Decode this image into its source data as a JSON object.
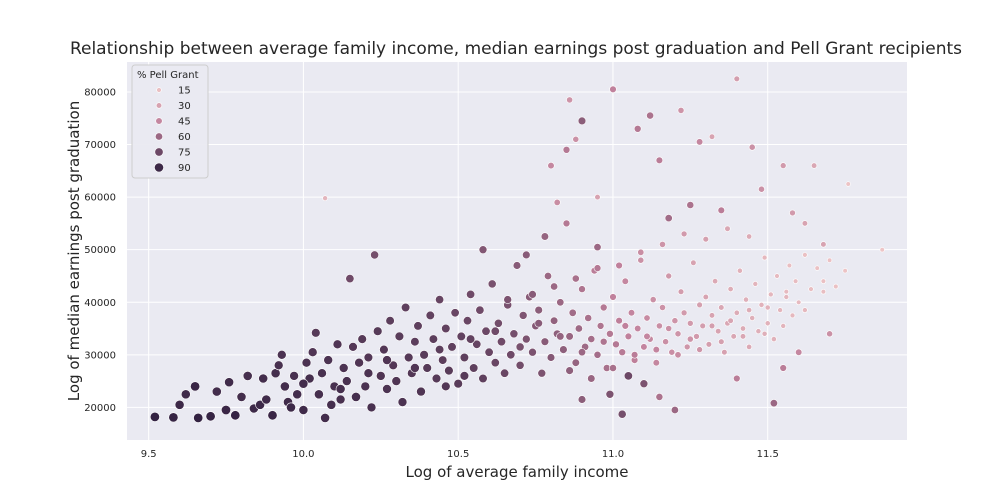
{
  "chart_data": {
    "type": "scatter",
    "title": "Relationship between average family income, median earnings post graduation and Pell Grant recipients",
    "xlabel": "Log of average family income",
    "ylabel": "Log of median earnings post graduation",
    "xlim": [
      9.43,
      11.95
    ],
    "ylim": [
      13800,
      85700
    ],
    "x_ticks": [
      "9.5",
      "10.0",
      "10.5",
      "11.0",
      "11.5"
    ],
    "y_ticks": [
      "20000",
      "30000",
      "40000",
      "50000",
      "60000",
      "70000",
      "80000"
    ],
    "grid": true,
    "background": "#eaeaf2",
    "legend": {
      "title": "% Pell Grant",
      "placement": "top-left",
      "entries": [
        "15",
        "30",
        "45",
        "60",
        "75",
        "90"
      ]
    },
    "hue_range": [
      10,
      95
    ],
    "colors": {
      "low": "#f0c9c9",
      "mid": "#c0819c",
      "high": "#2d1e3e"
    },
    "points": [
      [
        9.52,
        18200,
        93
      ],
      [
        9.58,
        18100,
        92
      ],
      [
        9.6,
        20500,
        90
      ],
      [
        9.62,
        22500,
        89
      ],
      [
        9.65,
        24000,
        91
      ],
      [
        9.66,
        18000,
        93
      ],
      [
        9.7,
        18300,
        92
      ],
      [
        9.72,
        23000,
        88
      ],
      [
        9.75,
        19500,
        91
      ],
      [
        9.76,
        24800,
        89
      ],
      [
        9.78,
        18500,
        92
      ],
      [
        9.8,
        22000,
        88
      ],
      [
        9.82,
        26000,
        87
      ],
      [
        9.84,
        19800,
        90
      ],
      [
        9.86,
        20500,
        90
      ],
      [
        9.87,
        25500,
        88
      ],
      [
        9.88,
        21500,
        89
      ],
      [
        9.9,
        18500,
        91
      ],
      [
        9.91,
        26500,
        87
      ],
      [
        9.92,
        28000,
        86
      ],
      [
        9.93,
        30000,
        85
      ],
      [
        9.94,
        24000,
        88
      ],
      [
        9.95,
        21000,
        89
      ],
      [
        9.97,
        26000,
        86
      ],
      [
        9.98,
        22500,
        88
      ],
      [
        10.0,
        19500,
        89
      ],
      [
        10.01,
        28500,
        85
      ],
      [
        10.02,
        25500,
        87
      ],
      [
        10.03,
        30500,
        84
      ],
      [
        10.04,
        34200,
        82
      ],
      [
        10.05,
        22500,
        87
      ],
      [
        10.06,
        26500,
        86
      ],
      [
        10.07,
        18000,
        88
      ],
      [
        10.08,
        29000,
        85
      ],
      [
        10.09,
        20500,
        87
      ],
      [
        10.1,
        24000,
        86
      ],
      [
        10.11,
        32000,
        84
      ],
      [
        10.12,
        21500,
        86
      ],
      [
        10.13,
        27500,
        85
      ],
      [
        10.15,
        44500,
        74
      ],
      [
        10.14,
        25000,
        86
      ],
      [
        10.16,
        31500,
        83
      ],
      [
        10.17,
        22000,
        87
      ],
      [
        10.18,
        28500,
        84
      ],
      [
        10.19,
        33000,
        82
      ],
      [
        10.2,
        24000,
        85
      ],
      [
        10.21,
        29500,
        83
      ],
      [
        10.22,
        20000,
        86
      ],
      [
        10.23,
        49000,
        72
      ],
      [
        10.24,
        34500,
        82
      ],
      [
        10.25,
        26000,
        84
      ],
      [
        10.26,
        31000,
        83
      ],
      [
        10.27,
        23500,
        85
      ],
      [
        10.28,
        36500,
        80
      ],
      [
        10.29,
        28000,
        83
      ],
      [
        10.3,
        25000,
        84
      ],
      [
        10.31,
        33500,
        81
      ],
      [
        10.32,
        21000,
        85
      ],
      [
        10.33,
        39000,
        79
      ],
      [
        10.34,
        29500,
        82
      ],
      [
        10.35,
        26500,
        83
      ],
      [
        10.36,
        32500,
        80
      ],
      [
        10.37,
        35500,
        79
      ],
      [
        10.38,
        23000,
        84
      ],
      [
        10.39,
        30000,
        81
      ],
      [
        10.4,
        27500,
        82
      ],
      [
        10.41,
        37500,
        78
      ],
      [
        10.42,
        33000,
        80
      ],
      [
        10.43,
        25500,
        82
      ],
      [
        10.44,
        40500,
        77
      ],
      [
        10.45,
        29000,
        80
      ],
      [
        10.46,
        35000,
        78
      ],
      [
        10.47,
        27000,
        81
      ],
      [
        10.48,
        31500,
        79
      ],
      [
        10.49,
        38000,
        76
      ],
      [
        10.5,
        24500,
        81
      ],
      [
        10.51,
        33500,
        78
      ],
      [
        10.52,
        29500,
        79
      ],
      [
        10.53,
        36500,
        76
      ],
      [
        10.54,
        41500,
        74
      ],
      [
        10.55,
        27500,
        79
      ],
      [
        10.56,
        32000,
        77
      ],
      [
        10.57,
        38500,
        74
      ],
      [
        10.58,
        25500,
        79
      ],
      [
        10.59,
        34500,
        75
      ],
      [
        10.6,
        30500,
        76
      ],
      [
        10.61,
        43500,
        71
      ],
      [
        10.62,
        28500,
        76
      ],
      [
        10.63,
        36000,
        73
      ],
      [
        10.64,
        32500,
        74
      ],
      [
        10.65,
        26500,
        76
      ],
      [
        10.66,
        39500,
        71
      ],
      [
        10.67,
        30000,
        74
      ],
      [
        10.68,
        34000,
        72
      ],
      [
        10.69,
        47000,
        66
      ],
      [
        10.7,
        28000,
        73
      ],
      [
        10.71,
        37500,
        69
      ],
      [
        10.72,
        33000,
        70
      ],
      [
        10.73,
        41000,
        66
      ],
      [
        10.74,
        30500,
        70
      ],
      [
        10.75,
        35500,
        67
      ],
      [
        10.76,
        38500,
        65
      ],
      [
        10.77,
        26500,
        70
      ],
      [
        10.78,
        32500,
        66
      ],
      [
        10.79,
        45000,
        60
      ],
      [
        10.8,
        29500,
        67
      ],
      [
        10.81,
        36500,
        63
      ],
      [
        10.82,
        34000,
        64
      ],
      [
        10.83,
        40000,
        60
      ],
      [
        10.84,
        31000,
        64
      ],
      [
        10.85,
        55000,
        52
      ],
      [
        10.86,
        33500,
        61
      ],
      [
        10.87,
        38000,
        58
      ],
      [
        10.88,
        28500,
        62
      ],
      [
        10.89,
        35000,
        59
      ],
      [
        10.9,
        42500,
        54
      ],
      [
        10.91,
        31500,
        59
      ],
      [
        10.92,
        37000,
        56
      ],
      [
        10.93,
        33000,
        57
      ],
      [
        10.94,
        46000,
        50
      ],
      [
        10.95,
        30000,
        57
      ],
      [
        10.96,
        35500,
        54
      ],
      [
        10.97,
        39000,
        52
      ],
      [
        10.98,
        27500,
        56
      ],
      [
        10.99,
        34000,
        52
      ],
      [
        11.0,
        41000,
        48
      ],
      [
        11.01,
        32000,
        52
      ],
      [
        11.02,
        36500,
        49
      ],
      [
        11.03,
        30500,
        51
      ],
      [
        11.04,
        44000,
        45
      ],
      [
        11.05,
        33500,
        48
      ],
      [
        11.06,
        38000,
        46
      ],
      [
        11.07,
        29000,
        49
      ],
      [
        11.08,
        35000,
        46
      ],
      [
        11.09,
        48000,
        40
      ],
      [
        11.1,
        31500,
        46
      ],
      [
        11.11,
        37000,
        43
      ],
      [
        11.12,
        33000,
        44
      ],
      [
        11.13,
        40500,
        40
      ],
      [
        11.14,
        28500,
        45
      ],
      [
        11.15,
        35500,
        41
      ],
      [
        11.16,
        39000,
        39
      ],
      [
        11.17,
        32500,
        41
      ],
      [
        11.18,
        45000,
        36
      ],
      [
        11.19,
        30500,
        41
      ],
      [
        11.2,
        36500,
        38
      ],
      [
        11.21,
        34000,
        38
      ],
      [
        11.22,
        42000,
        34
      ],
      [
        11.23,
        38000,
        35
      ],
      [
        11.24,
        31500,
        37
      ],
      [
        11.25,
        36000,
        35
      ],
      [
        11.26,
        47500,
        30
      ],
      [
        11.27,
        33500,
        35
      ],
      [
        11.28,
        39500,
        32
      ],
      [
        11.29,
        35500,
        33
      ],
      [
        11.3,
        41000,
        30
      ],
      [
        11.31,
        32000,
        33
      ],
      [
        11.32,
        37500,
        30
      ],
      [
        11.33,
        44000,
        27
      ],
      [
        11.34,
        34500,
        30
      ],
      [
        11.35,
        39000,
        28
      ],
      [
        11.36,
        30500,
        31
      ],
      [
        11.37,
        36000,
        28
      ],
      [
        11.38,
        42500,
        25
      ],
      [
        11.39,
        33500,
        28
      ],
      [
        11.4,
        38000,
        26
      ],
      [
        11.41,
        46000,
        23
      ],
      [
        11.42,
        35000,
        26
      ],
      [
        11.43,
        40500,
        24
      ],
      [
        11.44,
        31500,
        27
      ],
      [
        11.45,
        37000,
        24
      ],
      [
        11.46,
        43500,
        21
      ],
      [
        11.47,
        34500,
        24
      ],
      [
        11.48,
        39500,
        22
      ],
      [
        11.49,
        48500,
        19
      ],
      [
        11.5,
        36000,
        22
      ],
      [
        11.51,
        41500,
        20
      ],
      [
        11.52,
        33000,
        23
      ],
      [
        11.53,
        45000,
        18
      ],
      [
        11.54,
        38500,
        20
      ],
      [
        11.55,
        35500,
        21
      ],
      [
        11.56,
        42000,
        18
      ],
      [
        11.57,
        47000,
        16
      ],
      [
        11.58,
        37500,
        19
      ],
      [
        11.59,
        44000,
        17
      ],
      [
        11.6,
        40000,
        18
      ],
      [
        11.62,
        49000,
        15
      ],
      [
        11.64,
        42500,
        16
      ],
      [
        11.66,
        46500,
        14
      ],
      [
        11.68,
        44000,
        15
      ],
      [
        11.7,
        48000,
        14
      ],
      [
        11.72,
        43000,
        15
      ],
      [
        11.75,
        46000,
        13
      ],
      [
        11.87,
        50000,
        12
      ],
      [
        11.76,
        62500,
        13
      ],
      [
        11.65,
        66000,
        28
      ],
      [
        11.55,
        66000,
        35
      ],
      [
        11.45,
        69500,
        40
      ],
      [
        11.4,
        82500,
        33
      ],
      [
        11.32,
        71500,
        30
      ],
      [
        11.28,
        70500,
        45
      ],
      [
        11.22,
        76500,
        38
      ],
      [
        11.15,
        67000,
        50
      ],
      [
        11.12,
        75500,
        55
      ],
      [
        11.08,
        73000,
        52
      ],
      [
        11.0,
        80500,
        48
      ],
      [
        10.95,
        60000,
        30
      ],
      [
        10.9,
        74500,
        65
      ],
      [
        10.88,
        71000,
        40
      ],
      [
        10.86,
        78500,
        38
      ],
      [
        10.85,
        69000,
        52
      ],
      [
        10.8,
        66000,
        45
      ],
      [
        10.82,
        59000,
        42
      ],
      [
        10.07,
        59800,
        20
      ],
      [
        11.05,
        26000,
        75
      ],
      [
        10.99,
        22500,
        70
      ],
      [
        11.1,
        24500,
        70
      ],
      [
        11.2,
        19500,
        60
      ],
      [
        11.03,
        18700,
        72
      ],
      [
        11.52,
        20800,
        60
      ],
      [
        10.9,
        21500,
        65
      ],
      [
        11.15,
        22000,
        55
      ],
      [
        11.4,
        25500,
        50
      ],
      [
        11.55,
        27500,
        50
      ],
      [
        11.6,
        30500,
        45
      ],
      [
        11.7,
        34000,
        40
      ],
      [
        10.95,
        50500,
        60
      ],
      [
        11.18,
        56000,
        58
      ],
      [
        11.25,
        58500,
        55
      ],
      [
        11.35,
        57500,
        50
      ],
      [
        11.48,
        61500,
        40
      ],
      [
        11.58,
        57000,
        35
      ],
      [
        11.62,
        55000,
        30
      ],
      [
        11.68,
        51000,
        30
      ],
      [
        10.78,
        52500,
        62
      ],
      [
        10.72,
        49000,
        66
      ],
      [
        10.58,
        50000,
        68
      ],
      [
        10.66,
        40500,
        70
      ],
      [
        10.54,
        33000,
        78
      ],
      [
        10.44,
        31000,
        80
      ],
      [
        10.62,
        34500,
        74
      ],
      [
        10.7,
        31500,
        71
      ],
      [
        10.76,
        36000,
        66
      ],
      [
        10.83,
        33500,
        62
      ],
      [
        10.9,
        30500,
        60
      ],
      [
        10.97,
        32500,
        54
      ],
      [
        11.04,
        35500,
        48
      ],
      [
        11.11,
        33500,
        45
      ],
      [
        11.18,
        35000,
        40
      ],
      [
        11.25,
        33000,
        38
      ],
      [
        11.32,
        35500,
        33
      ],
      [
        11.38,
        36500,
        29
      ],
      [
        11.44,
        38500,
        25
      ],
      [
        11.5,
        39000,
        22
      ],
      [
        11.56,
        41000,
        20
      ],
      [
        11.62,
        38500,
        19
      ],
      [
        11.68,
        42000,
        16
      ],
      [
        10.52,
        26000,
        82
      ],
      [
        10.46,
        24000,
        83
      ],
      [
        10.36,
        27500,
        84
      ],
      [
        10.27,
        29000,
        84
      ],
      [
        10.21,
        26500,
        85
      ],
      [
        10.12,
        23500,
        87
      ],
      [
        10.0,
        24500,
        88
      ],
      [
        9.96,
        20000,
        90
      ],
      [
        10.86,
        27000,
        64
      ],
      [
        10.93,
        25500,
        61
      ],
      [
        11.0,
        27500,
        56
      ],
      [
        11.07,
        30000,
        50
      ],
      [
        11.14,
        31000,
        46
      ],
      [
        11.21,
        30000,
        42
      ],
      [
        11.28,
        31000,
        37
      ],
      [
        11.35,
        32500,
        32
      ],
      [
        11.42,
        33500,
        28
      ],
      [
        11.49,
        34000,
        24
      ],
      [
        10.74,
        41500,
        66
      ],
      [
        10.81,
        43000,
        60
      ],
      [
        10.88,
        44500,
        56
      ],
      [
        10.95,
        46500,
        52
      ],
      [
        11.02,
        47000,
        48
      ],
      [
        11.09,
        49500,
        42
      ],
      [
        11.16,
        51000,
        38
      ],
      [
        11.23,
        53000,
        35
      ],
      [
        11.3,
        52000,
        32
      ],
      [
        11.37,
        54000,
        28
      ],
      [
        11.44,
        52500,
        26
      ]
    ]
  }
}
